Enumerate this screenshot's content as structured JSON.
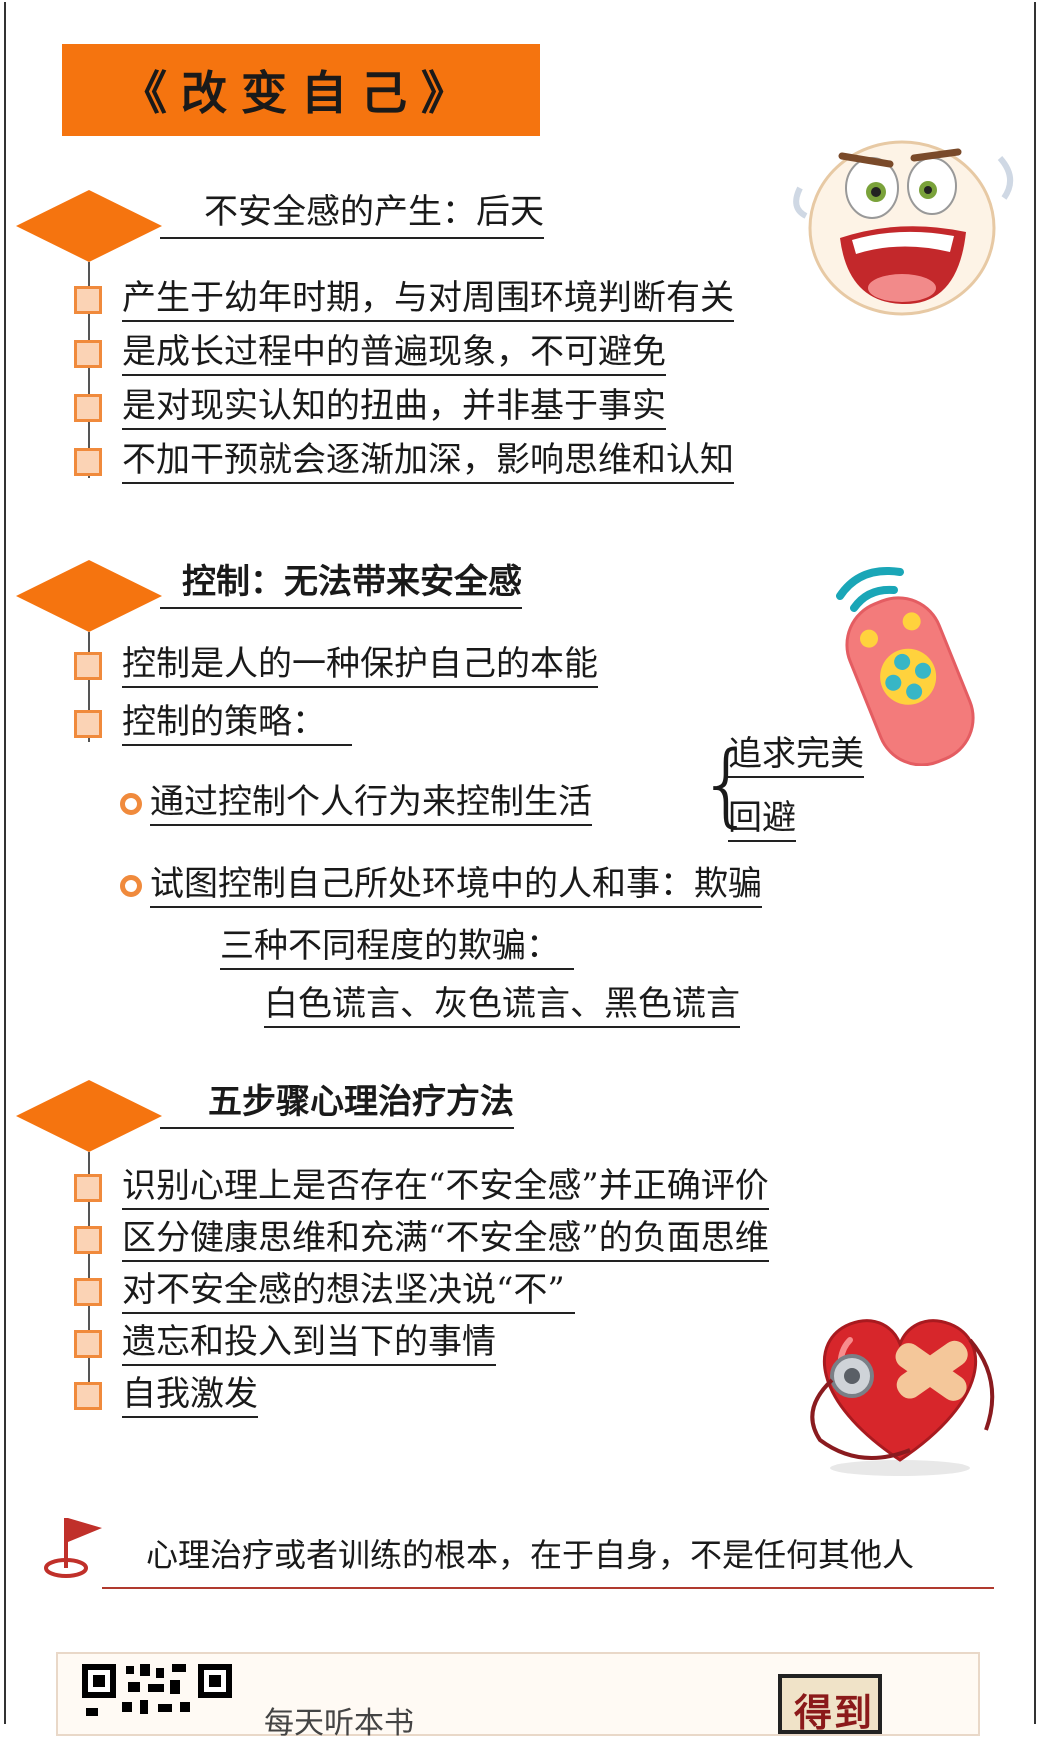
{
  "title": "《改变自己》",
  "sections": [
    {
      "heading": "不安全感的产生：后天",
      "items": [
        "产生于幼年时期，与对周围环境判断有关",
        "是成长过程中的普遍现象，不可避免",
        "是对现实认知的扭曲，并非基于事实",
        "不加干预就会逐渐加深，影响思维和认知"
      ]
    },
    {
      "heading": "控制：无法带来安全感",
      "items": [
        "控制是人的一种保护自己的本能",
        "控制的策略："
      ],
      "strategies": [
        {
          "text": "通过控制个人行为来控制生活",
          "branches": [
            "追求完美",
            "回避"
          ]
        },
        {
          "text": "试图控制自己所处环境中的人和事：欺骗"
        }
      ],
      "deception_title": "三种不同程度的欺骗：",
      "deception_types": "白色谎言、灰色谎言、黑色谎言"
    },
    {
      "heading": "五步骤心理治疗方法",
      "items": [
        "识别心理上是否存在“不安全感”并正确评价",
        "区分健康思维和充满“不安全感”的负面思维",
        "对不安全感的想法坚决说“不”",
        "遗忘和投入到当下的事情",
        "自我激发"
      ]
    }
  ],
  "conclusion": "心理治疗或者训练的根本，在于自身，不是任何其他人",
  "footer": {
    "left_text": "每天听本书",
    "logo_text": "得到"
  },
  "colors": {
    "accent": "#f5740f",
    "box_fill": "#fbd3b5",
    "red": "#c0302a"
  },
  "icons": [
    "scared-face-icon",
    "remote-control-icon",
    "heart-stethoscope-icon",
    "flag-icon",
    "qr-code-icon"
  ]
}
